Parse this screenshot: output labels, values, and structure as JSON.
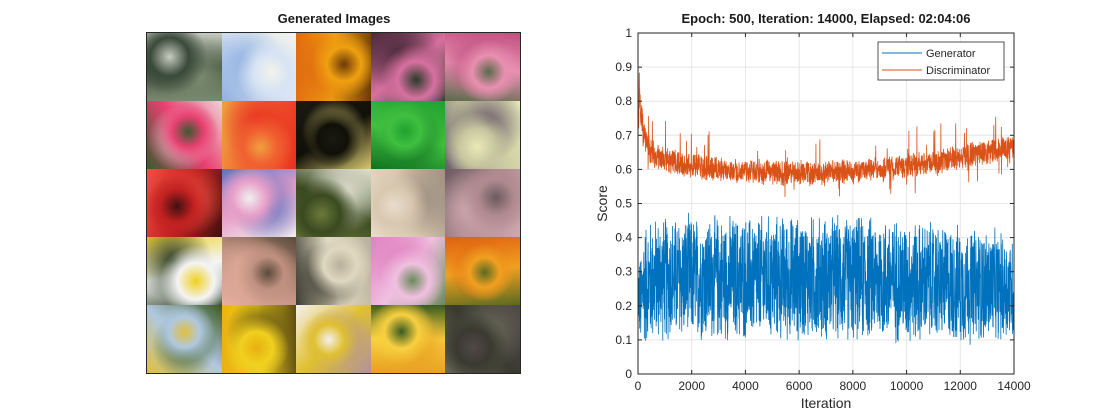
{
  "left_panel": {
    "title": "Generated Images",
    "tiles": [
      {
        "desc": "gray-green blurry bloom",
        "colors": [
          "#3a4a3a",
          "#7a8a70",
          "#c8ccc0"
        ]
      },
      {
        "desc": "white-blue daisy petals",
        "colors": [
          "#d8e4f4",
          "#8fb0e0",
          "#f2f2ea"
        ]
      },
      {
        "desc": "orange-yellow flower",
        "colors": [
          "#f0a010",
          "#e06a10",
          "#6a3a08"
        ]
      },
      {
        "desc": "pink blooms on dark",
        "colors": [
          "#d870a0",
          "#4a2a3a",
          "#2a3a2a"
        ]
      },
      {
        "desc": "pink rose",
        "colors": [
          "#e890b0",
          "#c05080",
          "#5a6a4a"
        ]
      },
      {
        "desc": "pink-red cluster",
        "colors": [
          "#e84070",
          "#f0d0d8",
          "#3a5a30"
        ]
      },
      {
        "desc": "red-orange petals",
        "colors": [
          "#f06030",
          "#e83020",
          "#f0a040"
        ]
      },
      {
        "desc": "dark with yellow center",
        "colors": [
          "#101008",
          "#d8c870",
          "#1a1a12"
        ]
      },
      {
        "desc": "bright green",
        "colors": [
          "#40c040",
          "#107020",
          "#20a030"
        ]
      },
      {
        "desc": "pale yellow bloom",
        "colors": [
          "#c8c8a0",
          "#6a5a6a",
          "#e8e8b8"
        ]
      },
      {
        "desc": "red flower",
        "colors": [
          "#c02020",
          "#f05040",
          "#401010"
        ]
      },
      {
        "desc": "pink-blue bloom framed",
        "colors": [
          "#e8a0c8",
          "#6070c0",
          "#f0f0f0"
        ]
      },
      {
        "desc": "green and white",
        "colors": [
          "#3a4a20",
          "#e0e0d0",
          "#6a7a3a"
        ]
      },
      {
        "desc": "beige blur",
        "colors": [
          "#d8c8b0",
          "#a09080",
          "#e8dccb"
        ]
      },
      {
        "desc": "pink-gray blur",
        "colors": [
          "#b08a90",
          "#d0a8b0",
          "#6a5a60"
        ]
      },
      {
        "desc": "white daisy",
        "colors": [
          "#f4f4f4",
          "#2a3a20",
          "#f0d020"
        ]
      },
      {
        "desc": "pink-tan cluster",
        "colors": [
          "#c09080",
          "#e8b0a0",
          "#5a4a3a"
        ]
      },
      {
        "desc": "cream blossom",
        "colors": [
          "#e0d8c0",
          "#3a3a30",
          "#b8b09a"
        ]
      },
      {
        "desc": "pink peony",
        "colors": [
          "#f0c0e0",
          "#e080c0",
          "#6a8a5a"
        ]
      },
      {
        "desc": "orange marigolds",
        "colors": [
          "#f0a020",
          "#e06010",
          "#5a6a20"
        ]
      },
      {
        "desc": "mixed garden",
        "colors": [
          "#b0c8e0",
          "#3a5a20",
          "#e0c040"
        ]
      },
      {
        "desc": "yellow sunflowers",
        "colors": [
          "#f0d020",
          "#5a4a10",
          "#e8b010"
        ]
      },
      {
        "desc": "yellow on pink",
        "colors": [
          "#e0c030",
          "#b090a0",
          "#f4f0f0"
        ]
      },
      {
        "desc": "yellow flower",
        "colors": [
          "#f8d040",
          "#e8a020",
          "#3a5a20"
        ]
      },
      {
        "desc": "dark field",
        "colors": [
          "#3a3a30",
          "#6a6a5a",
          "#504848"
        ]
      }
    ]
  },
  "chart_data": {
    "type": "line",
    "title": "Epoch: 500, Iteration: 14000, Elapsed: 02:04:06",
    "xlabel": "Iteration",
    "ylabel": "Score",
    "xlim": [
      0,
      14000
    ],
    "ylim": [
      0,
      1
    ],
    "xticks": [
      "0",
      "2000",
      "4000",
      "6000",
      "8000",
      "10000",
      "12000",
      "14000"
    ],
    "yticks": [
      "0",
      "0.1",
      "0.2",
      "0.3",
      "0.4",
      "0.5",
      "0.6",
      "0.7",
      "0.8",
      "0.9",
      "1"
    ],
    "grid": true,
    "legend_location": "top-right",
    "series": [
      {
        "name": "Generator",
        "color": "#0072BD",
        "x": [
          0,
          100,
          200,
          400,
          700,
          1000,
          1500,
          2000,
          2500,
          3000,
          4000,
          5000,
          6000,
          7000,
          8000,
          9000,
          10000,
          11000,
          12000,
          13000,
          14000
        ],
        "mean": [
          0.25,
          0.2,
          0.26,
          0.27,
          0.28,
          0.28,
          0.28,
          0.28,
          0.28,
          0.28,
          0.28,
          0.28,
          0.28,
          0.28,
          0.28,
          0.28,
          0.27,
          0.27,
          0.26,
          0.26,
          0.25
        ],
        "spread": [
          0.1,
          0.16,
          0.2,
          0.2,
          0.2,
          0.2,
          0.2,
          0.2,
          0.2,
          0.2,
          0.2,
          0.2,
          0.2,
          0.2,
          0.2,
          0.2,
          0.2,
          0.19,
          0.19,
          0.18,
          0.17
        ]
      },
      {
        "name": "Discriminator",
        "color": "#D95319",
        "x": [
          0,
          50,
          100,
          200,
          400,
          700,
          1000,
          1500,
          2000,
          2500,
          3000,
          4000,
          5000,
          6000,
          7000,
          8000,
          9000,
          10000,
          11000,
          12000,
          13000,
          14000
        ],
        "mean": [
          0.75,
          0.85,
          0.78,
          0.7,
          0.66,
          0.64,
          0.63,
          0.62,
          0.61,
          0.605,
          0.6,
          0.595,
          0.59,
          0.59,
          0.59,
          0.595,
          0.6,
          0.61,
          0.62,
          0.635,
          0.65,
          0.665
        ],
        "spread": [
          0.1,
          0.08,
          0.07,
          0.05,
          0.045,
          0.04,
          0.04,
          0.04,
          0.04,
          0.04,
          0.04,
          0.04,
          0.04,
          0.04,
          0.04,
          0.04,
          0.04,
          0.04,
          0.04,
          0.04,
          0.04,
          0.04
        ]
      }
    ]
  }
}
